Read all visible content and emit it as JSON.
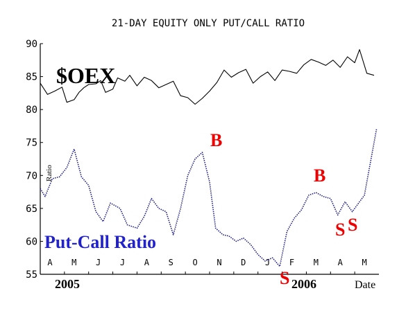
{
  "chart_data": {
    "type": "line",
    "title": "21-DAY EQUITY ONLY PUT/CALL RATIO",
    "ylabel": "Ratio",
    "xlabel": "Date",
    "ylim": [
      55,
      90
    ],
    "yticks": [
      55,
      60,
      65,
      70,
      75,
      80,
      85,
      90
    ],
    "months": [
      "A",
      "M",
      "J",
      "J",
      "A",
      "S",
      "O",
      "N",
      "D",
      "J",
      "F",
      "M",
      "A",
      "M"
    ],
    "year_labels": [
      "2005",
      "2006"
    ],
    "grid": false,
    "series": [
      {
        "name": "$OEX",
        "color": "#000000",
        "style": "solid",
        "x": [
          0,
          0.3,
          0.6,
          0.9,
          1.1,
          1.4,
          1.6,
          1.8,
          2.0,
          2.3,
          2.5,
          2.7,
          3.0,
          3.2,
          3.5,
          3.7,
          4.0,
          4.3,
          4.6,
          4.9,
          5.2,
          5.5,
          5.8,
          6.1,
          6.4,
          6.7,
          7.0,
          7.3,
          7.6,
          7.9,
          8.2,
          8.5,
          8.8,
          9.1,
          9.4,
          9.7,
          10.0,
          10.3,
          10.6,
          10.9,
          11.2,
          11.5,
          11.8,
          12.1,
          12.4,
          12.7,
          13.0,
          13.2,
          13.5,
          13.8
        ],
        "y": [
          84.0,
          82.3,
          82.8,
          83.4,
          81.1,
          81.5,
          82.6,
          83.3,
          83.8,
          83.9,
          84.4,
          82.6,
          83.1,
          84.8,
          84.3,
          85.2,
          83.6,
          84.9,
          84.4,
          83.3,
          83.8,
          84.3,
          82.1,
          81.8,
          80.8,
          81.7,
          82.8,
          84.1,
          86.0,
          84.9,
          85.6,
          86.1,
          84.0,
          85.0,
          85.7,
          84.4,
          86.0,
          85.8,
          85.5,
          86.8,
          87.6,
          87.2,
          86.7,
          87.5,
          86.4,
          88.0,
          87.1,
          89.1,
          85.5,
          85.2
        ]
      },
      {
        "name": "Put-Call Ratio",
        "color": "#1b1b8a",
        "style": "dotted",
        "x": [
          0,
          0.2,
          0.5,
          0.8,
          1.1,
          1.4,
          1.7,
          2.0,
          2.3,
          2.6,
          2.9,
          3.3,
          3.6,
          4.0,
          4.3,
          4.6,
          4.9,
          5.2,
          5.5,
          5.8,
          6.1,
          6.4,
          6.7,
          7.0,
          7.25,
          7.55,
          7.8,
          8.1,
          8.4,
          8.7,
          9.0,
          9.3,
          9.6,
          9.9,
          10.2,
          10.5,
          10.8,
          11.1,
          11.4,
          11.7,
          12.0,
          12.3,
          12.6,
          12.9,
          13.2,
          13.4,
          13.65,
          13.9
        ],
        "y": [
          68.0,
          66.8,
          69.5,
          69.8,
          71.2,
          74.0,
          69.8,
          68.5,
          64.5,
          63.0,
          65.8,
          65.0,
          62.5,
          62.0,
          63.8,
          66.5,
          65.0,
          64.5,
          61.0,
          65.0,
          70.0,
          72.5,
          73.5,
          69.0,
          62.0,
          61.0,
          60.8,
          60.0,
          60.5,
          59.5,
          58.0,
          57.0,
          57.5,
          56.2,
          61.5,
          63.5,
          64.8,
          67.0,
          67.4,
          66.8,
          66.5,
          64.0,
          66.0,
          64.5,
          66.0,
          67.0,
          72.0,
          77.0
        ]
      }
    ],
    "annotations": {
      "series_label_oex": "$OEX",
      "series_label_pcr": "Put-Call Ratio",
      "signal_buy": "B",
      "signal_sell": "S"
    }
  }
}
